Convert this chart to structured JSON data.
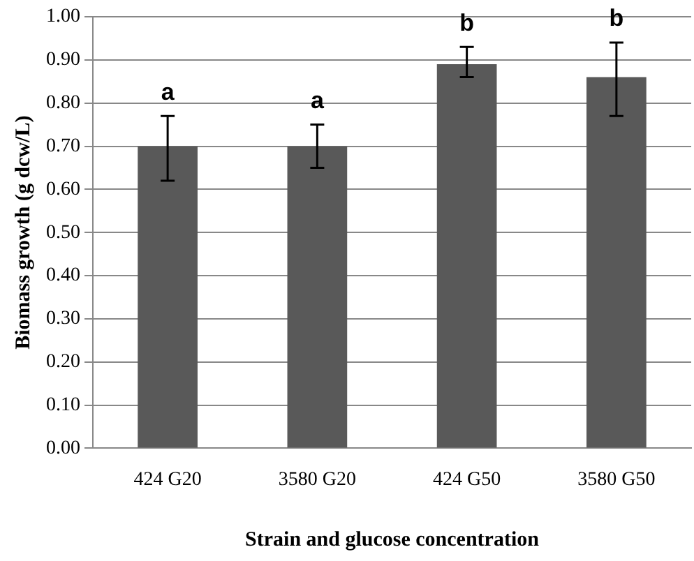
{
  "chart_data": {
    "type": "bar",
    "xlabel": "Strain and glucose concentration",
    "ylabel": "Biomass growth (g dcw/L)",
    "categories": [
      "424 G20",
      "3580 G20",
      "424 G50",
      "3580 G50"
    ],
    "values": [
      0.7,
      0.7,
      0.89,
      0.86
    ],
    "color": "#595959",
    "errors": [
      [
        0.62,
        0.77
      ],
      [
        0.65,
        0.75
      ],
      [
        0.86,
        0.93
      ],
      [
        0.77,
        0.94
      ]
    ],
    "ylim": [
      0,
      1
    ],
    "yticks": [
      {
        "value": 0,
        "label": "0.00"
      },
      {
        "value": 0.1,
        "label": "0.10"
      },
      {
        "value": 0.2,
        "label": "0.20"
      },
      {
        "value": 0.3,
        "label": "0.30"
      },
      {
        "value": 0.4,
        "label": "0.40"
      },
      {
        "value": 0.5,
        "label": "0.50"
      },
      {
        "value": 0.6,
        "label": "0.60"
      },
      {
        "value": 0.7,
        "label": "0.70"
      },
      {
        "value": 0.8,
        "label": "0.80"
      },
      {
        "value": 0.9,
        "label": "0.90"
      },
      {
        "value": 1,
        "label": "1.00"
      }
    ],
    "annotations": [
      "a",
      "a",
      "b",
      "b"
    ],
    "grid": "y",
    "legend": false
  }
}
